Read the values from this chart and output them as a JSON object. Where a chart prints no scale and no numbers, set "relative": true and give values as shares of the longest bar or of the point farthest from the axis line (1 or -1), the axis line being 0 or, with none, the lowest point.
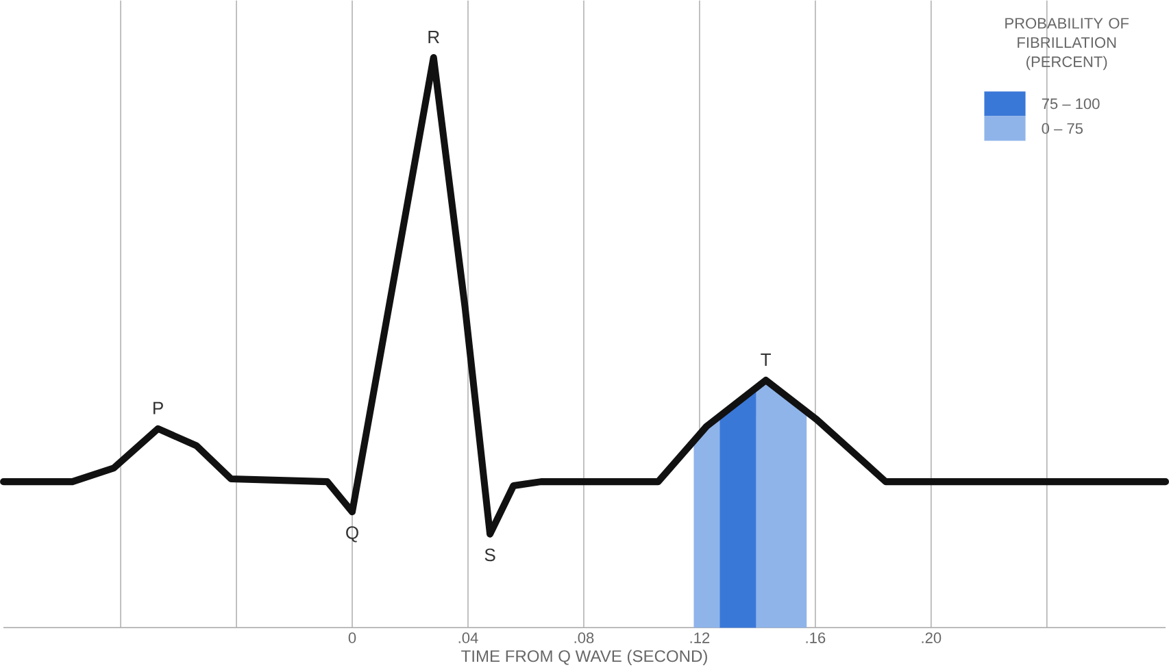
{
  "chart_data": {
    "type": "line",
    "relative": true,
    "xlabel": "TIME FROM Q WAVE (SECOND)",
    "legend_title": "PROBABILITY OF FIBRILLATION (PERCENT)",
    "legend": "top right",
    "grid": "x",
    "marker": "none",
    "line_style": "solid",
    "xlim": [
      -0.1205,
      0.281
    ],
    "xticks": [
      {
        "value": -0.08,
        "label": null
      },
      {
        "value": -0.04,
        "label": null
      },
      {
        "value": 0,
        "label": "0"
      },
      {
        "value": 0.04,
        "label": ".04"
      },
      {
        "value": 0.08,
        "label": ".08"
      },
      {
        "value": 0.12,
        "label": ".12"
      },
      {
        "value": 0.16,
        "label": ".16"
      },
      {
        "value": 0.2,
        "label": ".20"
      },
      {
        "value": 0.24,
        "label": null
      }
    ],
    "series": [
      {
        "color": "#111111",
        "x": [
          -0.1205,
          -0.0967,
          -0.0824,
          -0.0671,
          -0.0538,
          -0.0419,
          -0.0086,
          0,
          0.0281,
          0.039,
          0.0476,
          0.0557,
          0.0652,
          0.1057,
          0.1224,
          0.1429,
          0.1605,
          0.1843,
          0.281
        ],
        "values": [
          0.256,
          0.256,
          0.28,
          0.349,
          0.319,
          0.261,
          0.256,
          0.203,
          1.0,
          0.561,
          0.164,
          0.249,
          0.256,
          0.256,
          0.353,
          0.434,
          0.365,
          0.256,
          0.256
        ]
      }
    ],
    "bands": [
      {
        "axis": "x",
        "from": 0.118,
        "to": 0.157,
        "label": "0 – 75",
        "color": "#8fb4ea"
      },
      {
        "axis": "x",
        "from": 0.127,
        "to": 0.1395,
        "label": "75 – 100",
        "color": "#3a78d8"
      }
    ],
    "annotations": [
      {
        "text": "P",
        "x": -0.0671,
        "y": 0.349
      },
      {
        "text": "Q",
        "x": 0,
        "y": 0.203
      },
      {
        "text": "R",
        "x": 0.0281,
        "y": 1.0
      },
      {
        "text": "S",
        "x": 0.0476,
        "y": 0.164
      },
      {
        "text": "T",
        "x": 0.1429,
        "y": 0.434
      }
    ]
  }
}
